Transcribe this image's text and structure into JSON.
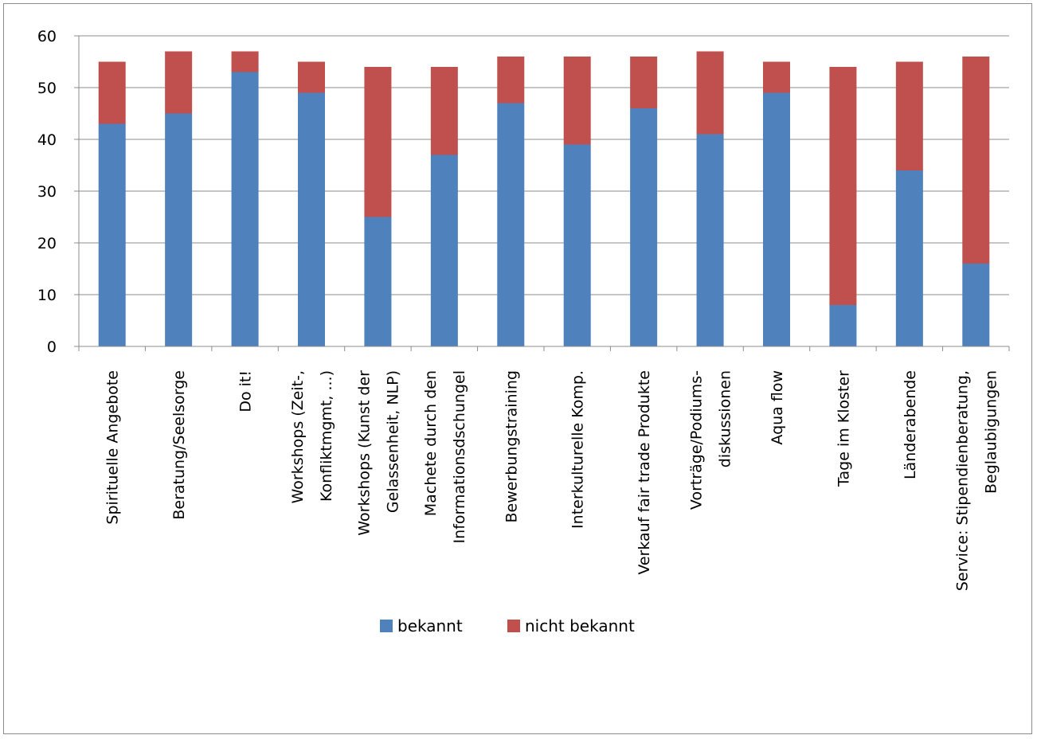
{
  "chart_data": {
    "type": "bar",
    "stacked": true,
    "title": "",
    "xlabel": "",
    "ylabel": "",
    "ylim": [
      0,
      60
    ],
    "yticks": [
      0,
      10,
      20,
      30,
      40,
      50,
      60
    ],
    "grid": true,
    "legend_position": "bottom",
    "categories": [
      [
        "Spirituelle Angebote"
      ],
      [
        "Beratung/Seelsorge"
      ],
      [
        "Do it!"
      ],
      [
        "Workshops (Zeit-,",
        "Konfliktmgmt, ...)"
      ],
      [
        "Workshops (Kunst der",
        "Gelassenheit, NLP)"
      ],
      [
        "Machete durch den",
        "Informationsdschungel"
      ],
      [
        "Bewerbungstraining"
      ],
      [
        "Interkulturelle Komp."
      ],
      [
        "Verkauf fair trade Produkte"
      ],
      [
        "Vorträge/Podiums-",
        "diskussionen"
      ],
      [
        "Aqua flow"
      ],
      [
        "Tage im Kloster"
      ],
      [
        "Länderabende"
      ],
      [
        "Service: Stipendienberatung,",
        "Beglaubigungen"
      ]
    ],
    "series": [
      {
        "name": "bekannt",
        "color": "#4f81bd",
        "values": [
          43,
          45,
          53,
          49,
          25,
          37,
          47,
          39,
          46,
          41,
          49,
          8,
          34,
          16
        ]
      },
      {
        "name": "nicht bekannt",
        "color": "#c0504d",
        "values": [
          12,
          12,
          4,
          6,
          29,
          17,
          9,
          17,
          10,
          16,
          6,
          46,
          21,
          40
        ]
      }
    ]
  }
}
